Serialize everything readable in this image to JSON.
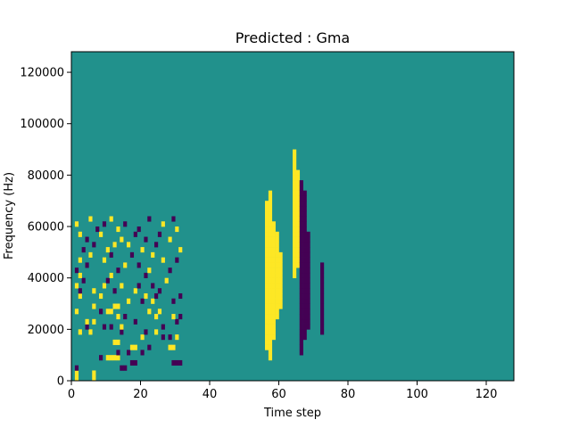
{
  "chart_data": {
    "type": "heatmap",
    "title": "Predicted : Gma",
    "xlabel": "Time step",
    "ylabel": "Frequency (Hz)",
    "xlim": [
      0,
      128
    ],
    "ylim": [
      0,
      128000
    ],
    "xticks": [
      0,
      20,
      40,
      60,
      80,
      100,
      120
    ],
    "yticks": [
      0,
      20000,
      40000,
      60000,
      80000,
      100000,
      120000
    ],
    "xtick_labels": [
      "0",
      "20",
      "40",
      "60",
      "80",
      "100",
      "120"
    ],
    "ytick_labels": [
      "0",
      "20000",
      "40000",
      "60000",
      "80000",
      "100000",
      "120000"
    ],
    "colormap": "viridis",
    "colors": {
      "background": "#21918c",
      "low": "#440154",
      "high": "#fde725"
    },
    "value_levels": {
      "low": -1,
      "background": 0,
      "high": 1
    },
    "rows": 64,
    "cols": 128,
    "cell_width_units": 1,
    "cell_height_units": 2000,
    "cells": [
      [
        0,
        1,
        1
      ],
      [
        0,
        6,
        1
      ],
      [
        1,
        1,
        1
      ],
      [
        1,
        6,
        1
      ],
      [
        2,
        1,
        -1
      ],
      [
        2,
        14,
        -1
      ],
      [
        2,
        15,
        -1
      ],
      [
        3,
        17,
        -1
      ],
      [
        3,
        18,
        -1
      ],
      [
        3,
        29,
        -1
      ],
      [
        3,
        30,
        -1
      ],
      [
        3,
        31,
        -1
      ],
      [
        4,
        8,
        -1
      ],
      [
        4,
        10,
        1
      ],
      [
        4,
        11,
        1
      ],
      [
        4,
        12,
        1
      ],
      [
        4,
        13,
        1
      ],
      [
        5,
        13,
        -1
      ],
      [
        5,
        16,
        -1
      ],
      [
        5,
        20,
        -1
      ],
      [
        6,
        17,
        1
      ],
      [
        6,
        18,
        1
      ],
      [
        6,
        22,
        -1
      ],
      [
        6,
        28,
        1
      ],
      [
        6,
        29,
        1
      ],
      [
        7,
        12,
        1
      ],
      [
        7,
        13,
        1
      ],
      [
        8,
        20,
        1
      ],
      [
        8,
        26,
        -1
      ],
      [
        8,
        28,
        -1
      ],
      [
        8,
        30,
        1
      ],
      [
        9,
        2,
        1
      ],
      [
        9,
        5,
        1
      ],
      [
        9,
        14,
        -1
      ],
      [
        9,
        21,
        -1
      ],
      [
        9,
        24,
        1
      ],
      [
        10,
        4,
        -1
      ],
      [
        10,
        9,
        -1
      ],
      [
        10,
        11,
        -1
      ],
      [
        10,
        14,
        1
      ],
      [
        10,
        26,
        -1
      ],
      [
        11,
        4,
        1
      ],
      [
        11,
        6,
        1
      ],
      [
        11,
        18,
        -1
      ],
      [
        11,
        30,
        -1
      ],
      [
        12,
        13,
        1
      ],
      [
        12,
        15,
        -1
      ],
      [
        12,
        24,
        1
      ],
      [
        12,
        29,
        1
      ],
      [
        12,
        31,
        -1
      ],
      [
        13,
        1,
        1
      ],
      [
        13,
        8,
        -1
      ],
      [
        13,
        10,
        1
      ],
      [
        13,
        11,
        1
      ],
      [
        13,
        22,
        1
      ],
      [
        13,
        25,
        1
      ],
      [
        14,
        6,
        1
      ],
      [
        14,
        12,
        1
      ],
      [
        14,
        13,
        1
      ],
      [
        15,
        16,
        1
      ],
      [
        15,
        20,
        -1
      ],
      [
        15,
        23,
        1
      ],
      [
        15,
        29,
        -1
      ],
      [
        16,
        2,
        1
      ],
      [
        16,
        8,
        1
      ],
      [
        16,
        21,
        1
      ],
      [
        16,
        24,
        -1
      ],
      [
        16,
        31,
        -1
      ],
      [
        17,
        2,
        -1
      ],
      [
        17,
        6,
        1
      ],
      [
        17,
        12,
        -1
      ],
      [
        17,
        18,
        1
      ],
      [
        17,
        25,
        -1
      ],
      [
        18,
        1,
        1
      ],
      [
        18,
        9,
        1
      ],
      [
        18,
        14,
        1
      ],
      [
        18,
        19,
        -1
      ],
      [
        18,
        23,
        -1
      ],
      [
        19,
        3,
        -1
      ],
      [
        19,
        10,
        -1
      ],
      [
        19,
        27,
        1
      ],
      [
        20,
        2,
        1
      ],
      [
        20,
        11,
        1
      ],
      [
        20,
        21,
        -1
      ],
      [
        21,
        1,
        -1
      ],
      [
        21,
        13,
        -1
      ],
      [
        21,
        22,
        1
      ],
      [
        21,
        28,
        -1
      ],
      [
        22,
        4,
        -1
      ],
      [
        22,
        15,
        1
      ],
      [
        22,
        19,
        -1
      ],
      [
        23,
        2,
        1
      ],
      [
        23,
        9,
        1
      ],
      [
        23,
        26,
        1
      ],
      [
        23,
        30,
        -1
      ],
      [
        24,
        5,
        1
      ],
      [
        24,
        11,
        -1
      ],
      [
        24,
        17,
        -1
      ],
      [
        24,
        23,
        1
      ],
      [
        25,
        3,
        -1
      ],
      [
        25,
        10,
        1
      ],
      [
        25,
        20,
        1
      ],
      [
        25,
        31,
        1
      ],
      [
        26,
        6,
        -1
      ],
      [
        26,
        12,
        1
      ],
      [
        26,
        16,
        1
      ],
      [
        26,
        24,
        -1
      ],
      [
        27,
        4,
        -1
      ],
      [
        27,
        14,
        1
      ],
      [
        27,
        21,
        -1
      ],
      [
        27,
        28,
        1
      ],
      [
        28,
        2,
        1
      ],
      [
        28,
        8,
        1
      ],
      [
        28,
        18,
        -1
      ],
      [
        28,
        25,
        -1
      ],
      [
        29,
        7,
        -1
      ],
      [
        29,
        13,
        1
      ],
      [
        29,
        19,
        -1
      ],
      [
        29,
        30,
        1
      ],
      [
        30,
        1,
        1
      ],
      [
        30,
        9,
        -1
      ],
      [
        30,
        15,
        -1
      ],
      [
        30,
        26,
        1
      ],
      [
        31,
        5,
        1
      ],
      [
        31,
        11,
        1
      ],
      [
        31,
        22,
        -1
      ],
      [
        31,
        29,
        -1
      ]
    ],
    "column_blocks": [
      {
        "col": 56,
        "row_start": 6,
        "row_end": 34,
        "value": 1
      },
      {
        "col": 57,
        "row_start": 4,
        "row_end": 36,
        "value": 1
      },
      {
        "col": 58,
        "row_start": 8,
        "row_end": 30,
        "value": 1
      },
      {
        "col": 59,
        "row_start": 12,
        "row_end": 28,
        "value": 1
      },
      {
        "col": 60,
        "row_start": 14,
        "row_end": 24,
        "value": 1
      },
      {
        "col": 64,
        "row_start": 20,
        "row_end": 44,
        "value": 1
      },
      {
        "col": 65,
        "row_start": 22,
        "row_end": 40,
        "value": 1
      },
      {
        "col": 66,
        "row_start": 5,
        "row_end": 38,
        "value": -1
      },
      {
        "col": 67,
        "row_start": 8,
        "row_end": 36,
        "value": -1
      },
      {
        "col": 68,
        "row_start": 10,
        "row_end": 28,
        "value": -1
      },
      {
        "col": 72,
        "row_start": 9,
        "row_end": 22,
        "value": -1
      }
    ]
  }
}
